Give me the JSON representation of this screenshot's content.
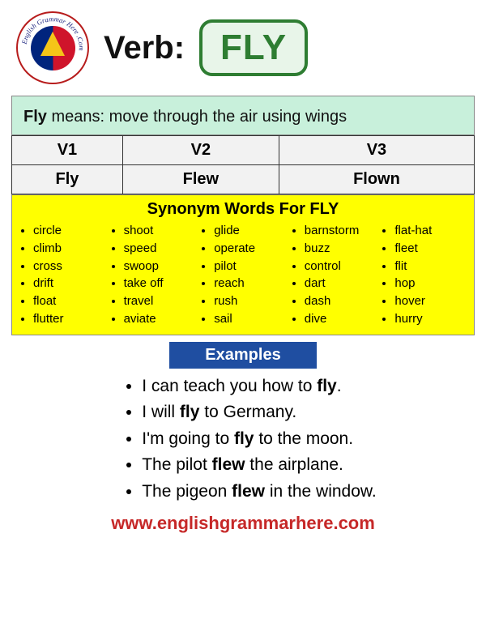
{
  "header": {
    "logo_outer_text": "English Grammar Here .Com",
    "verb_label": "Verb:",
    "verb_word": "FLY"
  },
  "meaning": {
    "bold_word": "Fly",
    "rest": " means: move through the air using wings"
  },
  "forms": {
    "headers": [
      "V1",
      "V2",
      "V3"
    ],
    "values": [
      "Fly",
      "Flew",
      "Flown"
    ]
  },
  "synonyms": {
    "title_prefix": "Synonym Words For ",
    "title_word": "FLY",
    "columns": [
      [
        "circle",
        "climb",
        "cross",
        "drift",
        "float",
        "flutter"
      ],
      [
        "shoot",
        "speed",
        "swoop",
        "take off",
        "travel",
        "aviate"
      ],
      [
        "glide",
        "operate",
        "pilot",
        "reach",
        "rush",
        "sail"
      ],
      [
        "barnstorm",
        "buzz",
        "control",
        "dart",
        "dash",
        "dive"
      ],
      [
        "flat-hat",
        "fleet",
        "flit",
        "hop",
        "hover",
        "hurry"
      ]
    ]
  },
  "examples": {
    "label": "Examples",
    "items": [
      {
        "pre": "I can teach you how to ",
        "b": "fly",
        "post": "."
      },
      {
        "pre": "I will ",
        "b": "fly",
        "post": " to Germany."
      },
      {
        "pre": "I'm going to ",
        "b": "fly",
        "post": " to the moon."
      },
      {
        "pre": "The pilot ",
        "b": "flew",
        "post": " the airplane."
      },
      {
        "pre": "The pigeon ",
        "b": "flew",
        "post": " in the window."
      }
    ]
  },
  "footer": "www.englishgrammarhere.com",
  "colors": {
    "green": "#2e7d32",
    "mint": "#c8f0db",
    "yellow": "#ffff00",
    "blue": "#1f4ea1",
    "red": "#c62828",
    "cell_bg": "#f2f2f2"
  }
}
